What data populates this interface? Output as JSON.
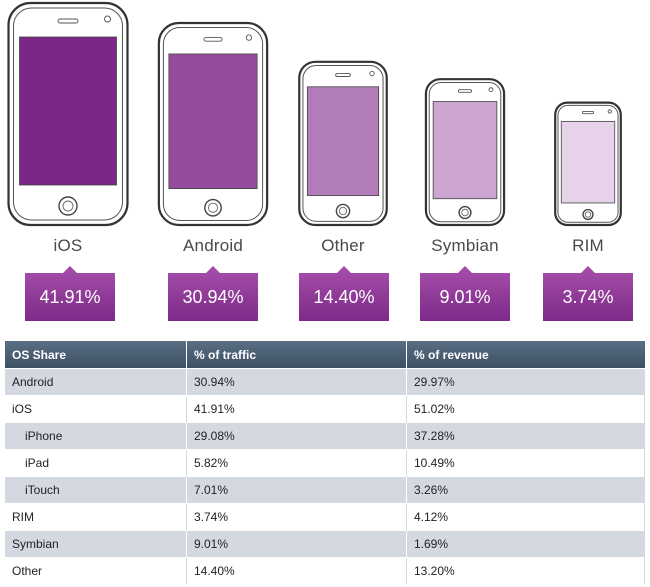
{
  "chart_data": {
    "type": "bar",
    "categories": [
      "iOS",
      "Android",
      "Other",
      "Symbian",
      "RIM"
    ],
    "values": [
      41.91,
      30.94,
      14.4,
      9.01,
      3.74
    ],
    "value_labels": [
      "41.91%",
      "30.94%",
      "14.40%",
      "9.01%",
      "3.74%"
    ],
    "screen_colors": [
      "#7b2584",
      "#964c9c",
      "#b27cb8",
      "#cca6d1",
      "#e6d3ea"
    ],
    "accent_color": "#8b3493"
  },
  "table": {
    "headers": [
      "OS Share",
      "% of traffic",
      "% of revenue"
    ],
    "rows": [
      {
        "os": "Android",
        "traffic": "30.94%",
        "revenue": "29.97%",
        "sub": false
      },
      {
        "os": "iOS",
        "traffic": "41.91%",
        "revenue": "51.02%",
        "sub": false
      },
      {
        "os": "iPhone",
        "traffic": "29.08%",
        "revenue": "37.28%",
        "sub": true
      },
      {
        "os": "iPad",
        "traffic": "5.82%",
        "revenue": "10.49%",
        "sub": true
      },
      {
        "os": "iTouch",
        "traffic": "7.01%",
        "revenue": "3.26%",
        "sub": true
      },
      {
        "os": "RIM",
        "traffic": "3.74%",
        "revenue": "4.12%",
        "sub": false
      },
      {
        "os": "Symbian",
        "traffic": "9.01%",
        "revenue": "1.69%",
        "sub": false
      },
      {
        "os": "Other",
        "traffic": "14.40%",
        "revenue": "13.20%",
        "sub": false
      }
    ]
  }
}
